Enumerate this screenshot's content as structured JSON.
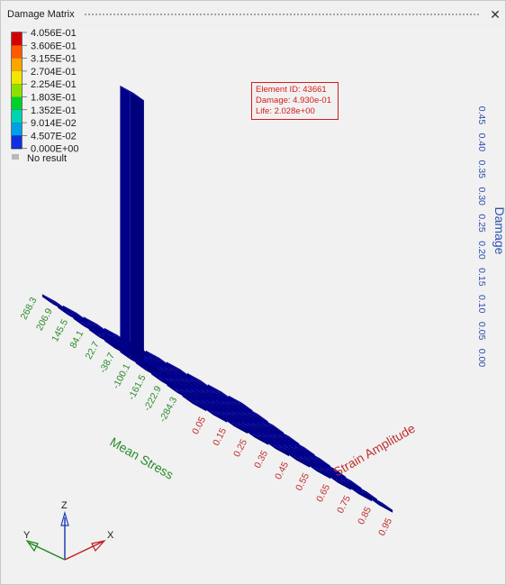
{
  "window": {
    "title": "Damage Matrix",
    "close_glyph": "✕"
  },
  "legend": {
    "entries": [
      {
        "label": "4.056E-01",
        "color": "#d40000"
      },
      {
        "label": "3.606E-01",
        "color": "#ff5a00"
      },
      {
        "label": "3.155E-01",
        "color": "#ffa500"
      },
      {
        "label": "2.704E-01",
        "color": "#f2e600"
      },
      {
        "label": "2.254E-01",
        "color": "#8ee000"
      },
      {
        "label": "1.803E-01",
        "color": "#00d02a"
      },
      {
        "label": "1.352E-01",
        "color": "#00d2b4"
      },
      {
        "label": "9.014E-02",
        "color": "#00a0e6"
      },
      {
        "label": "4.507E-02",
        "color": "#1030e0"
      },
      {
        "label": "0.000E+00",
        "color": "#000090"
      }
    ],
    "no_result": {
      "label": "No result",
      "color": "#b9b9b9"
    }
  },
  "tooltip": {
    "line1": "Element ID: 43661",
    "line2": "Damage: 4.930e-01",
    "line3": "Life: 2.028e+00"
  },
  "triad": {
    "x": "X",
    "y": "Y",
    "z": "Z"
  },
  "chart_data": {
    "type": "bar3d",
    "xlabel": "Strain Amplitude",
    "ylabel": "Mean Stress",
    "zlabel": "Damage",
    "x_ticks": [
      "0.05",
      "0.15",
      "0.25",
      "0.35",
      "0.45",
      "0.55",
      "0.65",
      "0.75",
      "0.85",
      "0.95"
    ],
    "y_ticks": [
      "-284.3",
      "-222.9",
      "-161.5",
      "-100.1",
      "-38.7",
      "22.7",
      "84.1",
      "145.5",
      "206.9",
      "268.3"
    ],
    "z_ticks": [
      "0.00",
      "0.05",
      "0.10",
      "0.15",
      "0.20",
      "0.25",
      "0.30",
      "0.35",
      "0.40",
      "0.45"
    ],
    "zlim": [
      0,
      0.45
    ],
    "bar_color": "#000098",
    "bars": [
      {
        "x_index": 0,
        "y_index": 4,
        "z": 0.493
      },
      {
        "x_index": 0,
        "y_index": 5,
        "z": 0.015
      },
      {
        "x_index": 0,
        "y_index": 3,
        "z": 0.015
      },
      {
        "x_index": 0,
        "y_index": 2,
        "z": 0.006
      }
    ]
  }
}
